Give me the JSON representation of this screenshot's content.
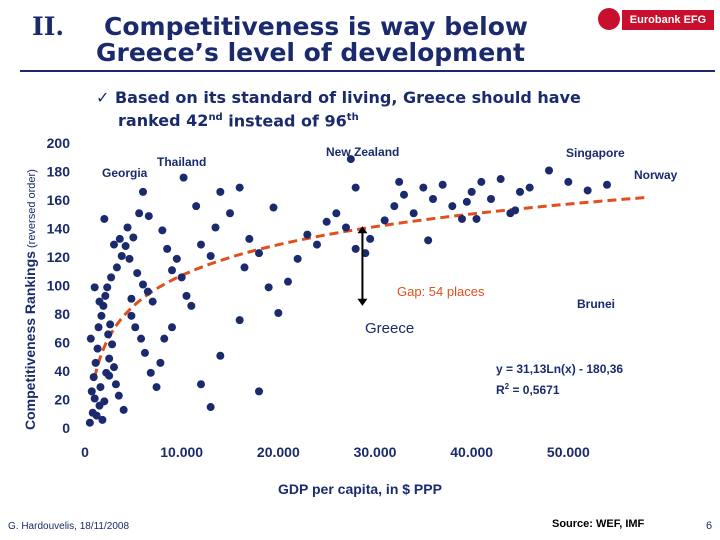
{
  "header": {
    "section_number": "II.",
    "title_line1": "Competitiveness is way below",
    "title_line2": "Greece’s level of development",
    "logo_text": "Eurobank EFG"
  },
  "bullet": {
    "check": "✓",
    "line1": "Based on its standard of living, Greece should have",
    "line2_pre": "ranked 42",
    "line2_sup1": "nd",
    "line2_mid": " instead of 96",
    "line2_sup2": "th"
  },
  "y_axis_label": {
    "main": "Competitiveness Rankings",
    "suffix": " (reversed order)"
  },
  "footer": {
    "author": "G. Hardouvelis, 18/11/2008",
    "source": "Source: WEF, IMF",
    "page": "6"
  },
  "chart_data": {
    "type": "scatter",
    "title": "",
    "xlabel": "GDP per capita, in $ PPP",
    "ylabel": "Competitiveness Rankings (reversed order)",
    "xlim": [
      0,
      60000
    ],
    "ylim": [
      0,
      200
    ],
    "x_ticks": [
      "0",
      "10.000",
      "20.000",
      "30.000",
      "40.000",
      "50.000"
    ],
    "x_tick_values": [
      0,
      10000,
      20000,
      30000,
      40000,
      50000
    ],
    "y_ticks": [
      "0",
      "20",
      "40",
      "60",
      "80",
      "100",
      "120",
      "140",
      "160",
      "180",
      "200"
    ],
    "y_tick_values": [
      0,
      20,
      40,
      60,
      80,
      100,
      120,
      140,
      160,
      180,
      200
    ],
    "colors": {
      "points": "#1a2a6c",
      "trend": "#e0501e",
      "axis_text": "#1a2a6c",
      "annot_red": "#e0501e"
    },
    "trendline": {
      "equation": "y = 31,13Ln(x) - 180,36",
      "r2_label": "R",
      "r2_sup": "2",
      "r2_value": " = 0,5671",
      "a": 31.13,
      "b": -180.36,
      "x_from": 1000,
      "x_to": 58000
    },
    "points": [
      [
        500,
        3
      ],
      [
        800,
        10
      ],
      [
        1000,
        20
      ],
      [
        1200,
        8
      ],
      [
        1500,
        15
      ],
      [
        700,
        25
      ],
      [
        900,
        35
      ],
      [
        1100,
        45
      ],
      [
        1300,
        55
      ],
      [
        600,
        62
      ],
      [
        1600,
        28
      ],
      [
        1800,
        5
      ],
      [
        2000,
        18
      ],
      [
        2200,
        38
      ],
      [
        2500,
        48
      ],
      [
        1400,
        70
      ],
      [
        1700,
        78
      ],
      [
        1900,
        85
      ],
      [
        2100,
        92
      ],
      [
        2300,
        98
      ],
      [
        1000,
        98
      ],
      [
        1500,
        88
      ],
      [
        2400,
        65
      ],
      [
        2600,
        72
      ],
      [
        2800,
        58
      ],
      [
        3000,
        42
      ],
      [
        3200,
        30
      ],
      [
        3500,
        22
      ],
      [
        4000,
        12
      ],
      [
        2700,
        105
      ],
      [
        3300,
        112
      ],
      [
        3800,
        120
      ],
      [
        4200,
        127
      ],
      [
        4600,
        118
      ],
      [
        5000,
        133
      ],
      [
        5400,
        108
      ],
      [
        6000,
        100
      ],
      [
        6500,
        95
      ],
      [
        7000,
        88
      ],
      [
        4800,
        78
      ],
      [
        5200,
        70
      ],
      [
        5800,
        62
      ],
      [
        6200,
        52
      ],
      [
        6800,
        38
      ],
      [
        7400,
        28
      ],
      [
        3600,
        132
      ],
      [
        4400,
        140
      ],
      [
        5600,
        150
      ],
      [
        6600,
        148
      ],
      [
        8000,
        138
      ],
      [
        8500,
        125
      ],
      [
        9000,
        110
      ],
      [
        9500,
        118
      ],
      [
        10000,
        105
      ],
      [
        10500,
        92
      ],
      [
        11000,
        85
      ],
      [
        12000,
        128
      ],
      [
        13000,
        120
      ],
      [
        11500,
        155
      ],
      [
        14000,
        165
      ],
      [
        15000,
        150
      ],
      [
        16000,
        168
      ],
      [
        13500,
        140
      ],
      [
        17000,
        132
      ],
      [
        18000,
        122
      ],
      [
        16500,
        112
      ],
      [
        19000,
        98
      ],
      [
        20000,
        80
      ],
      [
        21000,
        102
      ],
      [
        22000,
        118
      ],
      [
        23000,
        135
      ],
      [
        24000,
        128
      ],
      [
        25000,
        144
      ],
      [
        26000,
        150
      ],
      [
        27000,
        140
      ],
      [
        28000,
        125
      ],
      [
        29000,
        122
      ],
      [
        29500,
        132
      ],
      [
        31000,
        145
      ],
      [
        32000,
        155
      ],
      [
        33000,
        163
      ],
      [
        34000,
        150
      ],
      [
        35000,
        168
      ],
      [
        36000,
        160
      ],
      [
        37000,
        170
      ],
      [
        38000,
        155
      ],
      [
        39000,
        146
      ],
      [
        40000,
        165
      ],
      [
        41000,
        172
      ],
      [
        42000,
        160
      ],
      [
        43000,
        174
      ],
      [
        44000,
        150
      ],
      [
        45000,
        165
      ],
      [
        46000,
        168
      ],
      [
        48000,
        180
      ],
      [
        50000,
        172
      ],
      [
        52000,
        166
      ],
      [
        54000,
        170
      ],
      [
        35500,
        131
      ],
      [
        39500,
        158
      ],
      [
        2000,
        146
      ],
      [
        3000,
        128
      ],
      [
        4800,
        90
      ],
      [
        7800,
        45
      ],
      [
        8200,
        62
      ],
      [
        13000,
        14
      ],
      [
        14000,
        50
      ],
      [
        18000,
        25
      ],
      [
        12000,
        30
      ],
      [
        16000,
        75
      ],
      [
        9000,
        70
      ],
      [
        10200,
        175
      ],
      [
        27500,
        188
      ],
      [
        28000,
        168
      ],
      [
        32500,
        172
      ],
      [
        40500,
        146
      ],
      [
        19500,
        154
      ],
      [
        44500,
        152
      ],
      [
        6000,
        165
      ],
      [
        2500,
        36
      ]
    ],
    "annotations": {
      "labeled_points": [
        {
          "label": "Greece",
          "x": 28900,
          "y": 86
        },
        {
          "label": "Brunei",
          "x": 53100,
          "y": 95
        },
        {
          "label": "Georgia",
          "x": 2900,
          "y": 166
        },
        {
          "label": "Thailand",
          "x": 7800,
          "y": 170
        },
        {
          "label": "New Zealand",
          "x": 27500,
          "y": 179
        },
        {
          "label": "Singapore",
          "x": 47500,
          "y": 182
        },
        {
          "label": "Norway",
          "x": 55500,
          "y": 171
        }
      ],
      "gap_label": "Gap: 54 places",
      "greece_label": "Greece",
      "brunei_label": "Brunei",
      "georgia_label": "Georgia",
      "thailand_label": "Thailand",
      "nz_label": "New Zealand",
      "singapore_label": "Singapore",
      "norway_label": "Norway"
    }
  }
}
